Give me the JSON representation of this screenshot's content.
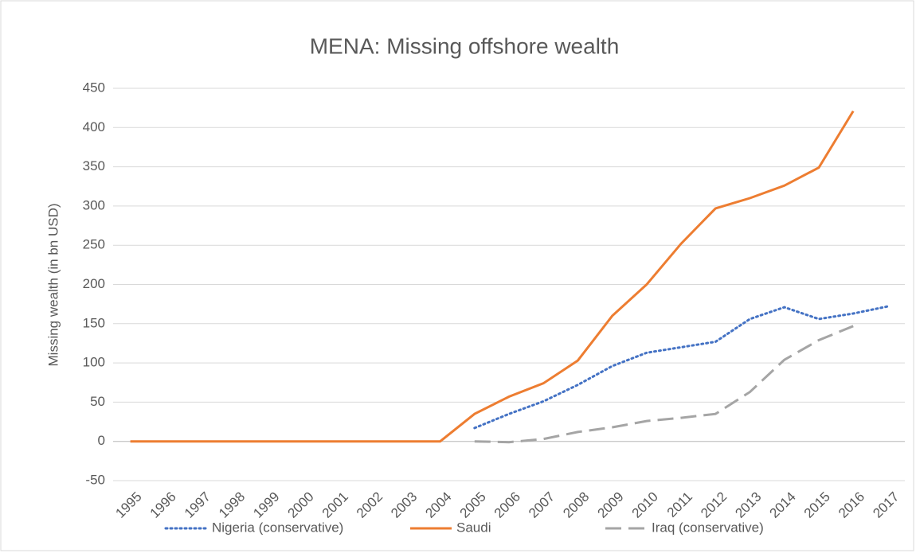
{
  "chart_data": {
    "type": "line",
    "title": "MENA: Missing offshore wealth",
    "y_label": "Missing wealth (in bn USD)",
    "categories": [
      "1995",
      "1996",
      "1997",
      "1998",
      "1999",
      "2000",
      "2001",
      "2002",
      "2003",
      "2004",
      "2005",
      "2006",
      "2007",
      "2008",
      "2009",
      "2010",
      "2011",
      "2012",
      "2013",
      "2014",
      "2015",
      "2016",
      "2017"
    ],
    "series": [
      {
        "name": "Nigeria (conservative)",
        "color": "#4472c4",
        "dash": "dotted",
        "values": [
          null,
          null,
          null,
          null,
          null,
          null,
          null,
          null,
          null,
          null,
          17,
          35,
          51,
          72,
          96,
          113,
          120,
          127,
          156,
          171,
          156,
          163,
          172
        ]
      },
      {
        "name": "Saudi",
        "color": "#ed7d31",
        "dash": "solid",
        "values": [
          0,
          0,
          0,
          0,
          0,
          0,
          0,
          0,
          0,
          0,
          35,
          57,
          74,
          103,
          160,
          200,
          252,
          297,
          310,
          326,
          349,
          421,
          null
        ]
      },
      {
        "name": "Iraq (conservative)",
        "color": "#a5a5a5",
        "dash": "dashed",
        "values": [
          null,
          null,
          null,
          null,
          null,
          null,
          null,
          null,
          null,
          null,
          0,
          -1,
          3,
          12,
          18,
          26,
          30,
          35,
          63,
          104,
          129,
          147,
          null
        ]
      }
    ],
    "ylim": [
      -50,
      450
    ],
    "yticks": [
      -50,
      0,
      50,
      100,
      150,
      200,
      250,
      300,
      350,
      400,
      450
    ],
    "grid": true,
    "legend": "bottom"
  }
}
